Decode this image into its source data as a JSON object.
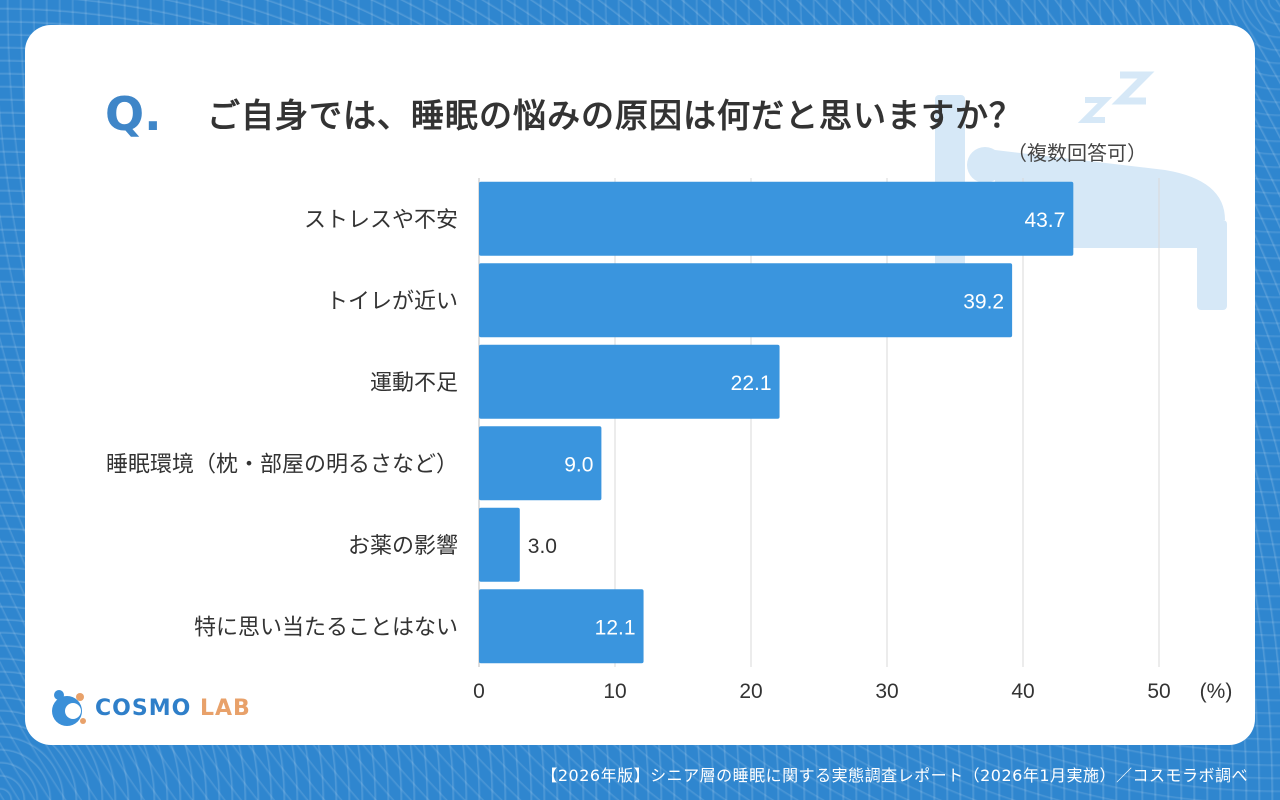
{
  "question_mark": "Q.",
  "title": "ご自身では、睡眠の悩みの原因は何だと思いますか？",
  "subtitle": "（複数回答可）",
  "logo": {
    "name": "COSMO",
    "suffix": "LAB"
  },
  "footer": "【2026年版】シニア層の睡眠に関する実態調査レポート（2026年1月実施）／コスモラボ調べ",
  "colors": {
    "bar": "#3a95de",
    "accent": "#3f86c8",
    "grid": "#d9d9d9",
    "icon": "#cfe4f6"
  },
  "chart_data": {
    "type": "bar",
    "orientation": "horizontal",
    "categories": [
      "ストレスや不安",
      "トイレが近い",
      "運動不足",
      "睡眠環境（枕・部屋の明るさなど）",
      "お薬の影響",
      "特に思い当たることはない"
    ],
    "values": [
      43.7,
      39.2,
      22.1,
      9.0,
      3.0,
      12.1
    ],
    "value_labels": [
      "43.7",
      "39.2",
      "22.1",
      "9.0",
      "3.0",
      "12.1"
    ],
    "xlim": [
      0,
      50
    ],
    "xticks": [
      0,
      10,
      20,
      30,
      40,
      50
    ],
    "xtick_labels": [
      "0",
      "10",
      "20",
      "30",
      "40",
      "50"
    ],
    "unit": "(%)",
    "grid": true
  }
}
